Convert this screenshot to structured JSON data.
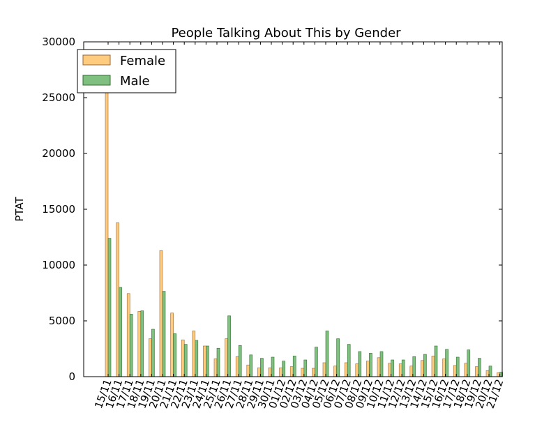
{
  "chart_data": {
    "type": "bar",
    "title": "People Talking About This by Gender",
    "xlabel": "",
    "ylabel": "PTAT",
    "ylim": [
      0,
      30000
    ],
    "yticks": [
      0,
      5000,
      10000,
      15000,
      20000,
      25000,
      30000
    ],
    "grid": false,
    "legend": "top-left",
    "categories": [
      "15/11",
      "16/11",
      "17/11",
      "18/11",
      "19/11",
      "20/11",
      "21/11",
      "22/11",
      "23/11",
      "24/11",
      "25/11",
      "26/11",
      "27/11",
      "28/11",
      "29/11",
      "30/11",
      "01/12",
      "02/12",
      "03/12",
      "04/12",
      "05/12",
      "06/12",
      "07/12",
      "08/12",
      "09/12",
      "10/12",
      "11/12",
      "12/12",
      "13/12",
      "14/12",
      "15/12",
      "16/12",
      "17/12",
      "18/12",
      "19/12",
      "20/12",
      "21/12"
    ],
    "series": [
      {
        "name": "Female",
        "color": "#ffcc7f",
        "values": [
          26000,
          13800,
          7450,
          5850,
          3400,
          11300,
          5700,
          3300,
          4100,
          2750,
          1600,
          3400,
          1800,
          1050,
          800,
          800,
          800,
          900,
          750,
          750,
          1250,
          950,
          1250,
          1150,
          1400,
          1700,
          1200,
          1150,
          950,
          1450,
          1850,
          1600,
          1000,
          1200,
          900,
          550,
          350
        ]
      },
      {
        "name": "Male",
        "color": "#7fbf7f",
        "values": [
          12400,
          8000,
          5600,
          5900,
          4250,
          7650,
          3850,
          2900,
          3250,
          2750,
          2550,
          5450,
          2800,
          1950,
          1650,
          1750,
          1400,
          1850,
          1500,
          2650,
          4100,
          3400,
          2900,
          2250,
          2100,
          2250,
          1500,
          1500,
          1800,
          2000,
          2750,
          2450,
          1750,
          2400,
          1650,
          950,
          400
        ]
      }
    ]
  }
}
